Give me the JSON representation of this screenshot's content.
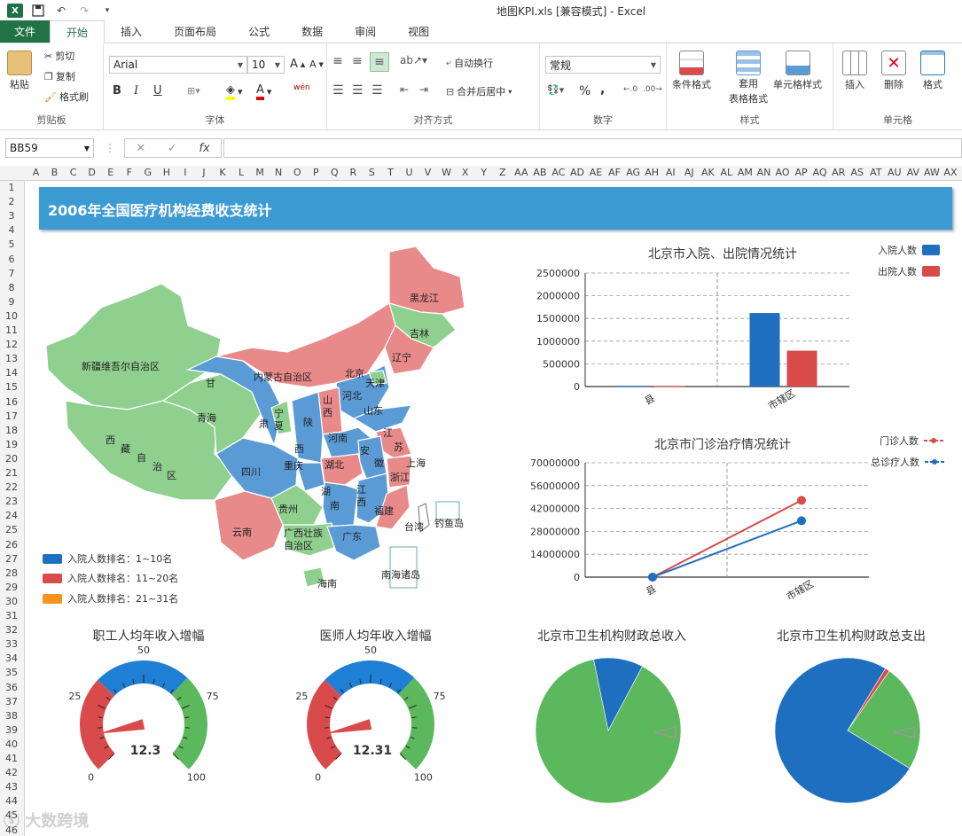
{
  "window": {
    "title": "地图KPI.xls  [兼容模式] - Excel",
    "app_icon": "X"
  },
  "tabs": [
    {
      "label": "文件"
    },
    {
      "label": "开始"
    },
    {
      "label": "插入"
    },
    {
      "label": "页面布局"
    },
    {
      "label": "公式"
    },
    {
      "label": "数据"
    },
    {
      "label": "审阅"
    },
    {
      "label": "视图"
    }
  ],
  "ribbon": {
    "clipboard": {
      "label": "剪贴板",
      "paste": "粘贴",
      "cut": "剪切",
      "copy": "复制",
      "format_painter": "格式刷"
    },
    "font": {
      "label": "字体",
      "font_name": "Arial",
      "font_size": "10",
      "bold": "B",
      "italic": "I",
      "underline": "U",
      "wen": "wén"
    },
    "alignment": {
      "label": "对齐方式",
      "wrap": "自动换行",
      "merge": "合并后居中"
    },
    "number": {
      "label": "数字",
      "format": "常规",
      "percent": "%",
      "comma": ","
    },
    "styles": {
      "label": "样式",
      "conditional": "条件格式",
      "table_format_1": "套用",
      "table_format_2": "表格格式",
      "cell_styles": "单元格样式"
    },
    "cells": {
      "label": "单元格",
      "insert": "插入",
      "delete": "删除",
      "format": "格式"
    }
  },
  "formula_bar": {
    "name_box": "BB59",
    "fx": "fx",
    "value": ""
  },
  "columns": [
    "A",
    "B",
    "C",
    "D",
    "E",
    "F",
    "G",
    "H",
    "I",
    "J",
    "K",
    "L",
    "M",
    "N",
    "O",
    "P",
    "Q",
    "R",
    "S",
    "T",
    "U",
    "V",
    "W",
    "X",
    "Y",
    "Z",
    "AA",
    "AB",
    "AC",
    "AD",
    "AE",
    "AF",
    "AG",
    "AH",
    "AI",
    "AJ",
    "AK",
    "AL",
    "AM",
    "AN",
    "AO",
    "AP",
    "AQ",
    "AR",
    "AS",
    "AT",
    "AU",
    "AV",
    "AW",
    "AX"
  ],
  "rows": [
    "1",
    "2",
    "3",
    "4",
    "5",
    "6",
    "7",
    "8",
    "9",
    "10",
    "11",
    "12",
    "13",
    "14",
    "15",
    "16",
    "17",
    "18",
    "19",
    "20",
    "21",
    "22",
    "23",
    "24",
    "25",
    "26",
    "27",
    "28",
    "29",
    "30",
    "31",
    "32",
    "33",
    "34",
    "35",
    "36",
    "37",
    "38",
    "39",
    "40",
    "41",
    "42",
    "43",
    "44",
    "45",
    "46"
  ],
  "dashboard": {
    "title": "2006年全国医疗机构经费收支统计",
    "map": {
      "provinces": {
        "xinjiang": "新疆维吾尔自治区",
        "xizang_1": "西",
        "xizang_2": "藏",
        "xizang_3": "自",
        "xizang_4": "治",
        "xizang_5": "区",
        "qinghai": "青海",
        "gansu_1": "甘",
        "gansu_2": "肃",
        "neimenggu": "内蒙古自治区",
        "heilongjiang": "黑龙江",
        "jilin": "吉林",
        "liaoning": "辽宁",
        "beijing": "北京",
        "tianjin": "天津",
        "hebei": "河北",
        "shanxi_1": "山",
        "shanxi_2": "西",
        "shandong": "山东",
        "ningxia_1": "宁",
        "ningxia_2": "夏",
        "shaanxi_1": "陕",
        "shaanxi_2": "西",
        "henan": "河南",
        "jiangsu_1": "江",
        "jiangsu_2": "苏",
        "anhui_1": "安",
        "anhui_2": "徽",
        "shanghai": "上海",
        "sichuan": "四川",
        "chongqing": "重庆",
        "hubei": "湖北",
        "zhejiang": "浙江",
        "hunan_1": "湖",
        "hunan_2": "南",
        "jiangxi_1": "江",
        "jiangxi_2": "西",
        "guizhou": "贵州",
        "fujian": "福建",
        "yunnan": "云南",
        "guangxi_1": "广西壮族",
        "guangxi_2": "自治区",
        "guangdong": "广东",
        "taiwan": "台湾",
        "diaoyu": "钓鱼岛",
        "hainan": "海南",
        "nanhai": "南海诸岛"
      },
      "legend": [
        {
          "label": "入院人数排名：1~10名",
          "color": "#1f6fc0"
        },
        {
          "label": "入院人数排名：11~20名",
          "color": "#d94b4b"
        },
        {
          "label": "入院人数排名：21~31名",
          "color": "#f7931e"
        }
      ],
      "colors": {
        "blue": "#5b9bd5",
        "red": "#e88a8a",
        "green": "#8fd08f"
      }
    },
    "gauges": [
      {
        "title": "职工人均年收入增幅",
        "value": 12.3,
        "value_label": "12.3",
        "ticks": [
          "0",
          "25",
          "50",
          "75",
          "100"
        ]
      },
      {
        "title": "医师人均年收入增幅",
        "value": 12.31,
        "value_label": "12.31",
        "ticks": [
          "0",
          "25",
          "50",
          "75",
          "100"
        ]
      }
    ],
    "pies": [
      {
        "title": "北京市卫生机构财政总收入",
        "slices": [
          {
            "value": 89,
            "color": "#5cb85c"
          },
          {
            "value": 11,
            "color": "#1f6fc0"
          }
        ]
      },
      {
        "title": "北京市卫生机构财政总支出",
        "slices": [
          {
            "value": 24,
            "color": "#5cb85c"
          },
          {
            "value": 75,
            "color": "#1f6fc0"
          },
          {
            "value": 1,
            "color": "#d94b4b"
          }
        ]
      }
    ]
  },
  "chart_data": [
    {
      "type": "bar",
      "title": "北京市入院、出院情况统计",
      "categories": [
        "县",
        "市辖区"
      ],
      "series": [
        {
          "name": "入院人数",
          "values": [
            15000,
            1620000
          ],
          "color": "#1f6fc0"
        },
        {
          "name": "出院人数",
          "values": [
            12000,
            790000
          ],
          "color": "#d94b4b"
        }
      ],
      "ylim": [
        0,
        2500000
      ],
      "yticks": [
        "2500000",
        "2000000",
        "1500000",
        "1000000",
        "500000",
        "0"
      ],
      "legend": "top-right"
    },
    {
      "type": "line",
      "title": "北京市门诊治疗情况统计",
      "categories": [
        "县",
        "市辖区"
      ],
      "series": [
        {
          "name": "门诊人数",
          "values": [
            0,
            47000000
          ],
          "color": "#d94b4b"
        },
        {
          "name": "总诊疗人数",
          "values": [
            0,
            34500000
          ],
          "color": "#1f6fc0"
        }
      ],
      "ylim": [
        0,
        70000000
      ],
      "yticks": [
        "70000000",
        "56000000",
        "42000000",
        "28000000",
        "14000000",
        "0"
      ],
      "legend": "top-right"
    }
  ]
}
